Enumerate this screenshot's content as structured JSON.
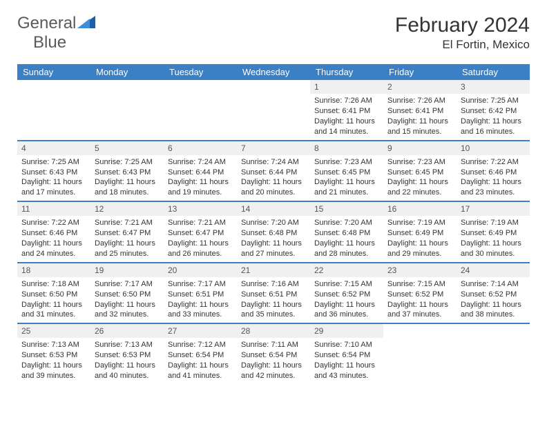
{
  "brand": {
    "word1": "General",
    "word2": "Blue"
  },
  "title": "February 2024",
  "location": "El Fortin, Mexico",
  "colors": {
    "header_bg": "#3b7fc4",
    "header_text": "#ffffff",
    "daynum_bg": "#f0f0f0",
    "border": "#3b7fc4",
    "text": "#333333",
    "page_bg": "#ffffff"
  },
  "typography": {
    "title_fontsize": 30,
    "location_fontsize": 17,
    "header_fontsize": 13,
    "cell_fontsize": 11,
    "logo_fontsize": 24
  },
  "day_names": [
    "Sunday",
    "Monday",
    "Tuesday",
    "Wednesday",
    "Thursday",
    "Friday",
    "Saturday"
  ],
  "weeks": [
    [
      {
        "n": "",
        "sunrise": "",
        "sunset": "",
        "daylight": ""
      },
      {
        "n": "",
        "sunrise": "",
        "sunset": "",
        "daylight": ""
      },
      {
        "n": "",
        "sunrise": "",
        "sunset": "",
        "daylight": ""
      },
      {
        "n": "",
        "sunrise": "",
        "sunset": "",
        "daylight": ""
      },
      {
        "n": "1",
        "sunrise": "Sunrise: 7:26 AM",
        "sunset": "Sunset: 6:41 PM",
        "daylight": "Daylight: 11 hours and 14 minutes."
      },
      {
        "n": "2",
        "sunrise": "Sunrise: 7:26 AM",
        "sunset": "Sunset: 6:41 PM",
        "daylight": "Daylight: 11 hours and 15 minutes."
      },
      {
        "n": "3",
        "sunrise": "Sunrise: 7:25 AM",
        "sunset": "Sunset: 6:42 PM",
        "daylight": "Daylight: 11 hours and 16 minutes."
      }
    ],
    [
      {
        "n": "4",
        "sunrise": "Sunrise: 7:25 AM",
        "sunset": "Sunset: 6:43 PM",
        "daylight": "Daylight: 11 hours and 17 minutes."
      },
      {
        "n": "5",
        "sunrise": "Sunrise: 7:25 AM",
        "sunset": "Sunset: 6:43 PM",
        "daylight": "Daylight: 11 hours and 18 minutes."
      },
      {
        "n": "6",
        "sunrise": "Sunrise: 7:24 AM",
        "sunset": "Sunset: 6:44 PM",
        "daylight": "Daylight: 11 hours and 19 minutes."
      },
      {
        "n": "7",
        "sunrise": "Sunrise: 7:24 AM",
        "sunset": "Sunset: 6:44 PM",
        "daylight": "Daylight: 11 hours and 20 minutes."
      },
      {
        "n": "8",
        "sunrise": "Sunrise: 7:23 AM",
        "sunset": "Sunset: 6:45 PM",
        "daylight": "Daylight: 11 hours and 21 minutes."
      },
      {
        "n": "9",
        "sunrise": "Sunrise: 7:23 AM",
        "sunset": "Sunset: 6:45 PM",
        "daylight": "Daylight: 11 hours and 22 minutes."
      },
      {
        "n": "10",
        "sunrise": "Sunrise: 7:22 AM",
        "sunset": "Sunset: 6:46 PM",
        "daylight": "Daylight: 11 hours and 23 minutes."
      }
    ],
    [
      {
        "n": "11",
        "sunrise": "Sunrise: 7:22 AM",
        "sunset": "Sunset: 6:46 PM",
        "daylight": "Daylight: 11 hours and 24 minutes."
      },
      {
        "n": "12",
        "sunrise": "Sunrise: 7:21 AM",
        "sunset": "Sunset: 6:47 PM",
        "daylight": "Daylight: 11 hours and 25 minutes."
      },
      {
        "n": "13",
        "sunrise": "Sunrise: 7:21 AM",
        "sunset": "Sunset: 6:47 PM",
        "daylight": "Daylight: 11 hours and 26 minutes."
      },
      {
        "n": "14",
        "sunrise": "Sunrise: 7:20 AM",
        "sunset": "Sunset: 6:48 PM",
        "daylight": "Daylight: 11 hours and 27 minutes."
      },
      {
        "n": "15",
        "sunrise": "Sunrise: 7:20 AM",
        "sunset": "Sunset: 6:48 PM",
        "daylight": "Daylight: 11 hours and 28 minutes."
      },
      {
        "n": "16",
        "sunrise": "Sunrise: 7:19 AM",
        "sunset": "Sunset: 6:49 PM",
        "daylight": "Daylight: 11 hours and 29 minutes."
      },
      {
        "n": "17",
        "sunrise": "Sunrise: 7:19 AM",
        "sunset": "Sunset: 6:49 PM",
        "daylight": "Daylight: 11 hours and 30 minutes."
      }
    ],
    [
      {
        "n": "18",
        "sunrise": "Sunrise: 7:18 AM",
        "sunset": "Sunset: 6:50 PM",
        "daylight": "Daylight: 11 hours and 31 minutes."
      },
      {
        "n": "19",
        "sunrise": "Sunrise: 7:17 AM",
        "sunset": "Sunset: 6:50 PM",
        "daylight": "Daylight: 11 hours and 32 minutes."
      },
      {
        "n": "20",
        "sunrise": "Sunrise: 7:17 AM",
        "sunset": "Sunset: 6:51 PM",
        "daylight": "Daylight: 11 hours and 33 minutes."
      },
      {
        "n": "21",
        "sunrise": "Sunrise: 7:16 AM",
        "sunset": "Sunset: 6:51 PM",
        "daylight": "Daylight: 11 hours and 35 minutes."
      },
      {
        "n": "22",
        "sunrise": "Sunrise: 7:15 AM",
        "sunset": "Sunset: 6:52 PM",
        "daylight": "Daylight: 11 hours and 36 minutes."
      },
      {
        "n": "23",
        "sunrise": "Sunrise: 7:15 AM",
        "sunset": "Sunset: 6:52 PM",
        "daylight": "Daylight: 11 hours and 37 minutes."
      },
      {
        "n": "24",
        "sunrise": "Sunrise: 7:14 AM",
        "sunset": "Sunset: 6:52 PM",
        "daylight": "Daylight: 11 hours and 38 minutes."
      }
    ],
    [
      {
        "n": "25",
        "sunrise": "Sunrise: 7:13 AM",
        "sunset": "Sunset: 6:53 PM",
        "daylight": "Daylight: 11 hours and 39 minutes."
      },
      {
        "n": "26",
        "sunrise": "Sunrise: 7:13 AM",
        "sunset": "Sunset: 6:53 PM",
        "daylight": "Daylight: 11 hours and 40 minutes."
      },
      {
        "n": "27",
        "sunrise": "Sunrise: 7:12 AM",
        "sunset": "Sunset: 6:54 PM",
        "daylight": "Daylight: 11 hours and 41 minutes."
      },
      {
        "n": "28",
        "sunrise": "Sunrise: 7:11 AM",
        "sunset": "Sunset: 6:54 PM",
        "daylight": "Daylight: 11 hours and 42 minutes."
      },
      {
        "n": "29",
        "sunrise": "Sunrise: 7:10 AM",
        "sunset": "Sunset: 6:54 PM",
        "daylight": "Daylight: 11 hours and 43 minutes."
      },
      {
        "n": "",
        "sunrise": "",
        "sunset": "",
        "daylight": ""
      },
      {
        "n": "",
        "sunrise": "",
        "sunset": "",
        "daylight": ""
      }
    ]
  ]
}
